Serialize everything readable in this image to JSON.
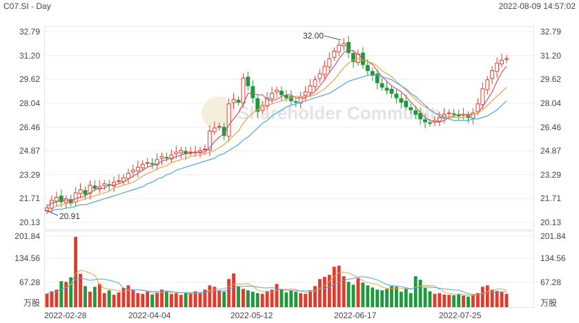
{
  "header": {
    "symbol": "C07.SI - Day",
    "timestamp": "2022-08-09 14:57:02"
  },
  "watermark": "Shareholder Community",
  "price_axis": [
    "32.79",
    "31.20",
    "29.62",
    "28.04",
    "26.46",
    "24.87",
    "23.29",
    "21.71",
    "20.13"
  ],
  "volume_axis": [
    "201.84",
    "134.56",
    "67.28",
    "万股"
  ],
  "x_axis": [
    "2022-02-28",
    "2022-04-04",
    "2022-05-12",
    "2022-06-17",
    "2022-07-25"
  ],
  "annotations": {
    "high": "32.00",
    "low": "20.91"
  },
  "colors": {
    "up": "#e23b2b",
    "down": "#1e9a3d",
    "ma5": "#d4506a",
    "ma10": "#f0a040",
    "ma20": "#4aa3df"
  },
  "chart_data": {
    "type": "candlestick",
    "ylim": [
      20.13,
      32.79
    ],
    "volume_ylim": [
      0,
      201.84
    ],
    "closes": [
      21.1,
      21.6,
      21.8,
      21.5,
      21.7,
      21.4,
      22.1,
      22.3,
      22.0,
      22.6,
      22.4,
      22.5,
      22.7,
      22.6,
      22.8,
      22.9,
      23.1,
      23.4,
      23.6,
      23.8,
      24.0,
      24.1,
      24.0,
      24.3,
      24.5,
      24.4,
      24.6,
      24.8,
      24.9,
      24.7,
      24.8,
      24.8,
      24.9,
      25.0,
      26.2,
      26.4,
      26.5,
      25.9,
      28.0,
      28.3,
      28.1,
      29.7,
      29.2,
      28.4,
      27.5,
      27.9,
      28.4,
      28.7,
      28.9,
      28.6,
      28.4,
      28.2,
      28.1,
      28.5,
      28.8,
      29.2,
      29.6,
      30.0,
      30.5,
      31.0,
      31.5,
      31.9,
      32.0,
      31.4,
      30.8,
      31.3,
      30.6,
      30.2,
      29.9,
      29.4,
      29.1,
      28.9,
      28.7,
      28.4,
      28.1,
      27.8,
      27.6,
      27.3,
      27.0,
      26.8,
      26.7,
      26.9,
      27.1,
      27.3,
      27.4,
      27.3,
      27.2,
      27.3,
      27.1,
      27.4,
      28.0,
      29.0,
      29.6,
      30.2,
      30.7,
      30.9,
      31.0
    ],
    "volumes": [
      38,
      45,
      50,
      74,
      72,
      85,
      200,
      95,
      60,
      44,
      58,
      66,
      40,
      48,
      35,
      42,
      55,
      62,
      48,
      40,
      38,
      44,
      36,
      42,
      50,
      46,
      38,
      40,
      35,
      42,
      38,
      45,
      40,
      50,
      62,
      58,
      48,
      44,
      80,
      96,
      60,
      52,
      48,
      44,
      40,
      38,
      46,
      50,
      66,
      52,
      42,
      48,
      44,
      40,
      38,
      46,
      60,
      80,
      86,
      92,
      115,
      118,
      88,
      72,
      64,
      82,
      70,
      62,
      56,
      50,
      48,
      52,
      60,
      58,
      44,
      52,
      40,
      88,
      78,
      55,
      45,
      38,
      40,
      36,
      35,
      34,
      38,
      33,
      30,
      35,
      40,
      58,
      62,
      50,
      46,
      44,
      38
    ],
    "series": [
      {
        "name": "MA5",
        "values": [
          21.2,
          21.4,
          21.5,
          21.6,
          21.6,
          21.6,
          21.7,
          21.8,
          21.9,
          22.1,
          22.3,
          22.4,
          22.4,
          22.6,
          22.6,
          22.7,
          22.8,
          23.0,
          23.2,
          23.4,
          23.6,
          23.8,
          23.9,
          24.0,
          24.2,
          24.3,
          24.4,
          24.5,
          24.6,
          24.7,
          24.7,
          24.8,
          24.8,
          24.8,
          25.1,
          25.5,
          25.8,
          26.0,
          26.6,
          27.0,
          27.4,
          28.0,
          28.7,
          28.7,
          28.6,
          28.6,
          28.3,
          28.2,
          28.3,
          28.5,
          28.6,
          28.6,
          28.4,
          28.4,
          28.4,
          28.6,
          28.8,
          29.2,
          29.6,
          30.1,
          30.5,
          31.0,
          31.4,
          31.6,
          31.5,
          31.3,
          31.0,
          30.8,
          30.6,
          30.2,
          29.8,
          29.5,
          29.2,
          29.0,
          28.8,
          28.5,
          28.1,
          27.8,
          27.4,
          27.1,
          26.9,
          26.8,
          26.8,
          26.9,
          27.1,
          27.2,
          27.3,
          27.3,
          27.3,
          27.3,
          27.4,
          27.8,
          28.3,
          28.8,
          29.5,
          30.1,
          30.5
        ]
      },
      {
        "name": "MA10",
        "values": [
          21.0,
          21.1,
          21.2,
          21.3,
          21.4,
          21.4,
          21.5,
          21.6,
          21.7,
          21.8,
          21.9,
          22.0,
          22.1,
          22.2,
          22.4,
          22.5,
          22.6,
          22.7,
          22.8,
          23.0,
          23.2,
          23.4,
          23.5,
          23.7,
          23.8,
          23.9,
          24.1,
          24.2,
          24.3,
          24.4,
          24.5,
          24.6,
          24.6,
          24.7,
          24.8,
          24.9,
          25.1,
          25.3,
          25.6,
          25.9,
          26.2,
          26.7,
          27.1,
          27.4,
          27.6,
          27.8,
          27.9,
          28.0,
          28.1,
          28.2,
          28.3,
          28.4,
          28.5,
          28.5,
          28.5,
          28.5,
          28.6,
          28.8,
          29.0,
          29.3,
          29.6,
          30.0,
          30.4,
          30.7,
          30.9,
          31.0,
          30.9,
          30.8,
          30.7,
          30.5,
          30.2,
          30.0,
          29.8,
          29.5,
          29.2,
          28.9,
          28.6,
          28.3,
          28.0,
          27.8,
          27.6,
          27.4,
          27.3,
          27.2,
          27.1,
          27.1,
          27.1,
          27.1,
          27.2,
          27.3,
          27.4,
          27.6,
          27.9,
          28.2,
          28.5,
          28.8,
          29.1
        ]
      },
      {
        "name": "MA20",
        "values": [
          20.8,
          20.9,
          21.0,
          21.0,
          21.1,
          21.1,
          21.2,
          21.3,
          21.3,
          21.4,
          21.5,
          21.6,
          21.7,
          21.8,
          21.9,
          22.0,
          22.1,
          22.2,
          22.3,
          22.4,
          22.5,
          22.7,
          22.8,
          23.0,
          23.1,
          23.3,
          23.4,
          23.6,
          23.7,
          23.8,
          23.9,
          24.0,
          24.1,
          24.2,
          24.3,
          24.4,
          24.6,
          24.7,
          24.9,
          25.1,
          25.3,
          25.6,
          25.8,
          26.1,
          26.4,
          26.7,
          26.9,
          27.2,
          27.4,
          27.6,
          27.8,
          27.9,
          28.0,
          28.1,
          28.2,
          28.3,
          28.4,
          28.5,
          28.6,
          28.7,
          28.9,
          29.1,
          29.3,
          29.5,
          29.6,
          29.7,
          29.8,
          29.9,
          29.9,
          29.9,
          29.8,
          29.7,
          29.6,
          29.4,
          29.2,
          29.0,
          28.7,
          28.5,
          28.2,
          27.9,
          27.6,
          27.4,
          27.2,
          27.1,
          27.0,
          26.9,
          26.9,
          26.9,
          26.9,
          27.0,
          27.0,
          27.1,
          27.2,
          27.4,
          27.6,
          27.9,
          28.2
        ]
      }
    ]
  }
}
